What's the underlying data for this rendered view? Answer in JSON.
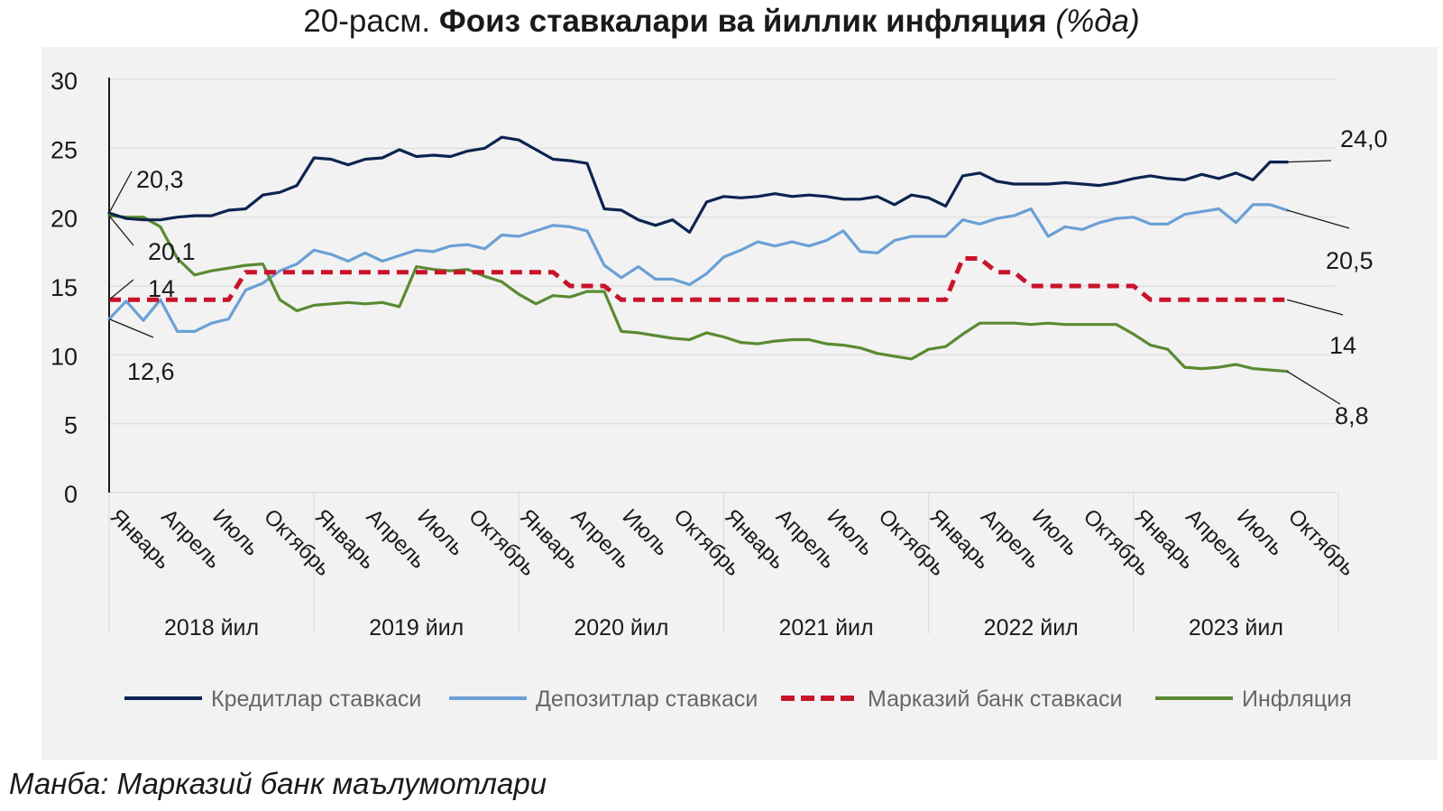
{
  "title": {
    "prefix": "20-расм.",
    "bold": "Фоиз ставкалари ва йиллик инфляция",
    "italic": "(%да)"
  },
  "source": "Манба: Марказий банк маълумотлари",
  "chart_data": {
    "type": "line",
    "y_ticks": [
      "0",
      "5",
      "10",
      "15",
      "20",
      "25",
      "30"
    ],
    "ylim": [
      0,
      30
    ],
    "grid": true,
    "legend_position": "bottom",
    "month_labels": [
      "Январь",
      "Апрель",
      "Июль",
      "Октябрь"
    ],
    "year_labels": [
      "2018 йил",
      "2019 йил",
      "2020 йил",
      "2021 йил",
      "2022 йил",
      "2023 йил"
    ],
    "series": [
      {
        "name": "Кредитлар ставкаси",
        "color": "#0d2350",
        "dash": "solid",
        "values": [
          20.3,
          19.9,
          19.8,
          19.8,
          20.0,
          20.1,
          20.1,
          20.5,
          20.6,
          21.6,
          21.8,
          22.3,
          24.3,
          24.2,
          23.8,
          24.2,
          24.3,
          24.9,
          24.4,
          24.5,
          24.4,
          24.8,
          25.0,
          25.8,
          25.6,
          24.9,
          24.2,
          24.1,
          23.9,
          20.6,
          20.5,
          19.8,
          19.4,
          19.8,
          18.9,
          21.1,
          21.5,
          21.4,
          21.5,
          21.7,
          21.5,
          21.6,
          21.5,
          21.3,
          21.3,
          21.5,
          20.9,
          21.6,
          21.4,
          20.8,
          23.0,
          23.2,
          22.6,
          22.4,
          22.4,
          22.4,
          22.5,
          22.4,
          22.3,
          22.5,
          22.8,
          23.0,
          22.8,
          22.7,
          23.1,
          22.8,
          23.2,
          22.7,
          24.0,
          24.0
        ]
      },
      {
        "name": "Депозитлар ставкаси",
        "color": "#6aa0d6",
        "dash": "solid",
        "values": [
          12.6,
          13.9,
          12.5,
          14.0,
          11.7,
          11.7,
          12.3,
          12.6,
          14.7,
          15.2,
          16.1,
          16.6,
          17.6,
          17.3,
          16.8,
          17.4,
          16.8,
          17.2,
          17.6,
          17.5,
          17.9,
          18.0,
          17.7,
          18.7,
          18.6,
          19.0,
          19.4,
          19.3,
          19.0,
          16.5,
          15.6,
          16.4,
          15.5,
          15.5,
          15.1,
          15.9,
          17.1,
          17.6,
          18.2,
          17.9,
          18.2,
          17.9,
          18.3,
          19.0,
          17.5,
          17.4,
          18.3,
          18.6,
          18.6,
          18.6,
          19.8,
          19.5,
          19.9,
          20.1,
          20.6,
          18.6,
          19.3,
          19.1,
          19.6,
          19.9,
          20.0,
          19.5,
          19.5,
          20.2,
          20.4,
          20.6,
          19.6,
          20.9,
          20.9,
          20.5
        ]
      },
      {
        "name": "Марказий банк ставкаси",
        "color": "#c8142a",
        "dash": "dashed",
        "values": [
          14,
          14,
          14,
          14,
          14,
          14,
          14,
          14,
          16,
          16,
          16,
          16,
          16,
          16,
          16,
          16,
          16,
          16,
          16,
          16,
          16,
          16,
          16,
          16,
          16,
          16,
          16,
          15,
          15,
          15,
          14,
          14,
          14,
          14,
          14,
          14,
          14,
          14,
          14,
          14,
          14,
          14,
          14,
          14,
          14,
          14,
          14,
          14,
          14,
          14,
          17,
          17,
          16,
          16,
          15,
          15,
          15,
          15,
          15,
          15,
          15,
          14,
          14,
          14,
          14,
          14,
          14,
          14,
          14,
          14
        ]
      },
      {
        "name": "Инфляция",
        "color": "#5a8a32",
        "dash": "solid",
        "values": [
          20.1,
          20.0,
          20.0,
          19.3,
          17.0,
          15.8,
          16.1,
          16.3,
          16.5,
          16.6,
          14.0,
          13.2,
          13.6,
          13.7,
          13.8,
          13.7,
          13.8,
          13.5,
          16.4,
          16.2,
          16.1,
          16.2,
          15.7,
          15.3,
          14.4,
          13.7,
          14.3,
          14.2,
          14.6,
          14.6,
          11.7,
          11.6,
          11.4,
          11.2,
          11.1,
          11.6,
          11.3,
          10.9,
          10.8,
          11.0,
          11.1,
          11.1,
          10.8,
          10.7,
          10.5,
          10.1,
          9.9,
          9.7,
          10.4,
          10.6,
          11.5,
          12.3,
          12.3,
          12.3,
          12.2,
          12.3,
          12.2,
          12.2,
          12.2,
          12.2,
          11.5,
          10.7,
          10.4,
          9.1,
          9.0,
          9.1,
          9.3,
          9.0,
          8.9,
          8.8
        ]
      }
    ],
    "annotations": [
      {
        "text": "20,3",
        "series": 0,
        "at": "start"
      },
      {
        "text": "20,1",
        "series": 3,
        "at": "start"
      },
      {
        "text": "14",
        "series": 2,
        "at": "start"
      },
      {
        "text": "12,6",
        "series": 1,
        "at": "start"
      },
      {
        "text": "24,0",
        "series": 0,
        "at": "end"
      },
      {
        "text": "20,5",
        "series": 1,
        "at": "end"
      },
      {
        "text": "14",
        "series": 2,
        "at": "end"
      },
      {
        "text": "8,8",
        "series": 3,
        "at": "end"
      }
    ]
  }
}
